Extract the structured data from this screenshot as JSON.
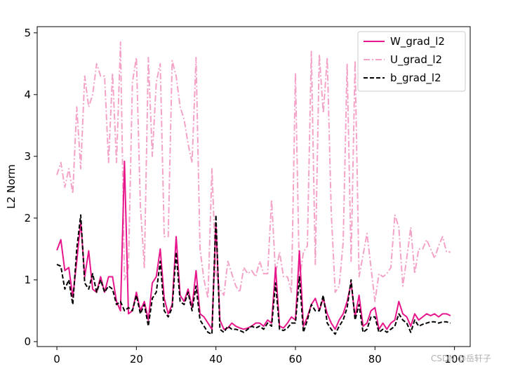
{
  "chart_data": {
    "type": "line",
    "title": "",
    "xlabel": "",
    "ylabel": "L2 Norm",
    "xlim": [
      -4.95,
      103.95
    ],
    "ylim": [
      -0.08,
      5.1
    ],
    "xticks": [
      0,
      20,
      40,
      60,
      80,
      100
    ],
    "yticks": [
      0,
      1,
      2,
      3,
      4,
      5
    ],
    "grid": false,
    "legend_position": "top-right",
    "x": [
      0,
      1,
      2,
      3,
      4,
      5,
      6,
      7,
      8,
      9,
      10,
      11,
      12,
      13,
      14,
      15,
      16,
      17,
      18,
      19,
      20,
      21,
      22,
      23,
      24,
      25,
      26,
      27,
      28,
      29,
      30,
      31,
      32,
      33,
      34,
      35,
      36,
      37,
      38,
      39,
      40,
      41,
      42,
      43,
      44,
      45,
      46,
      47,
      48,
      49,
      50,
      51,
      52,
      53,
      54,
      55,
      56,
      57,
      58,
      59,
      60,
      61,
      62,
      63,
      64,
      65,
      66,
      67,
      68,
      69,
      70,
      71,
      72,
      73,
      74,
      75,
      76,
      77,
      78,
      79,
      80,
      81,
      82,
      83,
      84,
      85,
      86,
      87,
      88,
      89,
      90,
      91,
      92,
      93,
      94,
      95,
      96,
      97,
      98,
      99
    ],
    "series": [
      {
        "name": "W_grad_l2",
        "color": "#e8168c",
        "style": "solid",
        "values": [
          1.48,
          1.65,
          1.15,
          1.2,
          0.72,
          1.3,
          1.95,
          1.05,
          1.47,
          0.85,
          0.8,
          1.05,
          0.8,
          1.05,
          1.05,
          0.65,
          0.5,
          2.92,
          0.45,
          0.5,
          0.8,
          0.5,
          0.65,
          0.35,
          0.95,
          1.05,
          1.5,
          0.7,
          0.45,
          0.6,
          1.7,
          0.75,
          0.65,
          0.85,
          0.55,
          1.15,
          0.45,
          0.4,
          0.3,
          0.2,
          1.9,
          0.35,
          0.2,
          0.22,
          0.3,
          0.25,
          0.22,
          0.2,
          0.22,
          0.25,
          0.3,
          0.3,
          0.25,
          0.35,
          0.3,
          1.2,
          0.25,
          0.22,
          0.3,
          0.4,
          0.35,
          1.47,
          0.25,
          0.4,
          0.6,
          0.7,
          0.5,
          0.7,
          0.45,
          0.3,
          0.2,
          0.35,
          0.45,
          0.65,
          0.95,
          0.4,
          0.75,
          0.25,
          0.3,
          0.5,
          0.55,
          0.2,
          0.3,
          0.2,
          0.3,
          0.35,
          0.65,
          0.45,
          0.4,
          0.25,
          0.45,
          0.35,
          0.4,
          0.45,
          0.42,
          0.45,
          0.4,
          0.45,
          0.45,
          0.42
        ]
      },
      {
        "name": "U_grad_l2",
        "color": "#f3a3c8",
        "style": "dashdot",
        "values": [
          2.7,
          2.9,
          2.5,
          2.8,
          2.4,
          3.8,
          2.8,
          4.3,
          3.8,
          4.0,
          4.5,
          4.3,
          4.3,
          2.9,
          4.35,
          2.9,
          4.85,
          1.0,
          1.2,
          4.2,
          4.6,
          2.2,
          1.2,
          4.6,
          3.0,
          4.2,
          4.5,
          1.7,
          1.7,
          4.55,
          4.3,
          3.8,
          3.6,
          3.2,
          2.9,
          4.6,
          1.5,
          1.0,
          0.7,
          2.8,
          1.1,
          0.85,
          0.75,
          1.3,
          1.1,
          0.9,
          0.8,
          1.2,
          1.1,
          1.15,
          1.05,
          1.3,
          1.1,
          1.1,
          2.3,
          1.1,
          1.45,
          1.05,
          1.05,
          0.8,
          4.35,
          1.0,
          1.45,
          1.55,
          4.7,
          1.25,
          4.65,
          3.7,
          4.6,
          2.1,
          0.8,
          0.9,
          1.6,
          4.5,
          1.3,
          4.55,
          1.05,
          1.4,
          1.75,
          1.2,
          0.65,
          1.1,
          1.05,
          1.1,
          1.2,
          2.05,
          1.85,
          0.9,
          1.35,
          1.85,
          1.1,
          1.5,
          1.5,
          1.65,
          1.5,
          1.35,
          1.55,
          1.7,
          1.45,
          1.45
        ]
      },
      {
        "name": "b_grad_l2",
        "color": "#000000",
        "style": "dashed",
        "values": [
          1.25,
          1.22,
          0.85,
          1.0,
          0.6,
          1.5,
          2.05,
          0.95,
          0.85,
          1.1,
          0.8,
          1.0,
          0.8,
          0.9,
          0.85,
          0.6,
          0.65,
          0.5,
          0.55,
          0.5,
          0.75,
          0.45,
          0.6,
          0.25,
          0.7,
          0.8,
          1.3,
          0.5,
          0.4,
          0.55,
          1.45,
          0.65,
          0.6,
          0.8,
          0.5,
          0.9,
          0.35,
          0.25,
          0.15,
          0.12,
          2.05,
          0.2,
          0.15,
          0.25,
          0.2,
          0.2,
          0.18,
          0.15,
          0.2,
          0.25,
          0.22,
          0.25,
          0.2,
          0.3,
          0.25,
          0.95,
          0.2,
          0.18,
          0.22,
          0.3,
          0.3,
          1.05,
          0.15,
          0.35,
          0.6,
          0.5,
          0.5,
          0.75,
          0.3,
          0.2,
          0.12,
          0.25,
          0.35,
          0.55,
          1.0,
          0.35,
          0.6,
          0.15,
          0.2,
          0.4,
          0.4,
          0.15,
          0.2,
          0.15,
          0.2,
          0.25,
          0.45,
          0.35,
          0.3,
          0.15,
          0.35,
          0.25,
          0.28,
          0.3,
          0.32,
          0.32,
          0.3,
          0.32,
          0.32,
          0.3
        ]
      }
    ]
  },
  "watermark": "CSDN @岳轩子"
}
